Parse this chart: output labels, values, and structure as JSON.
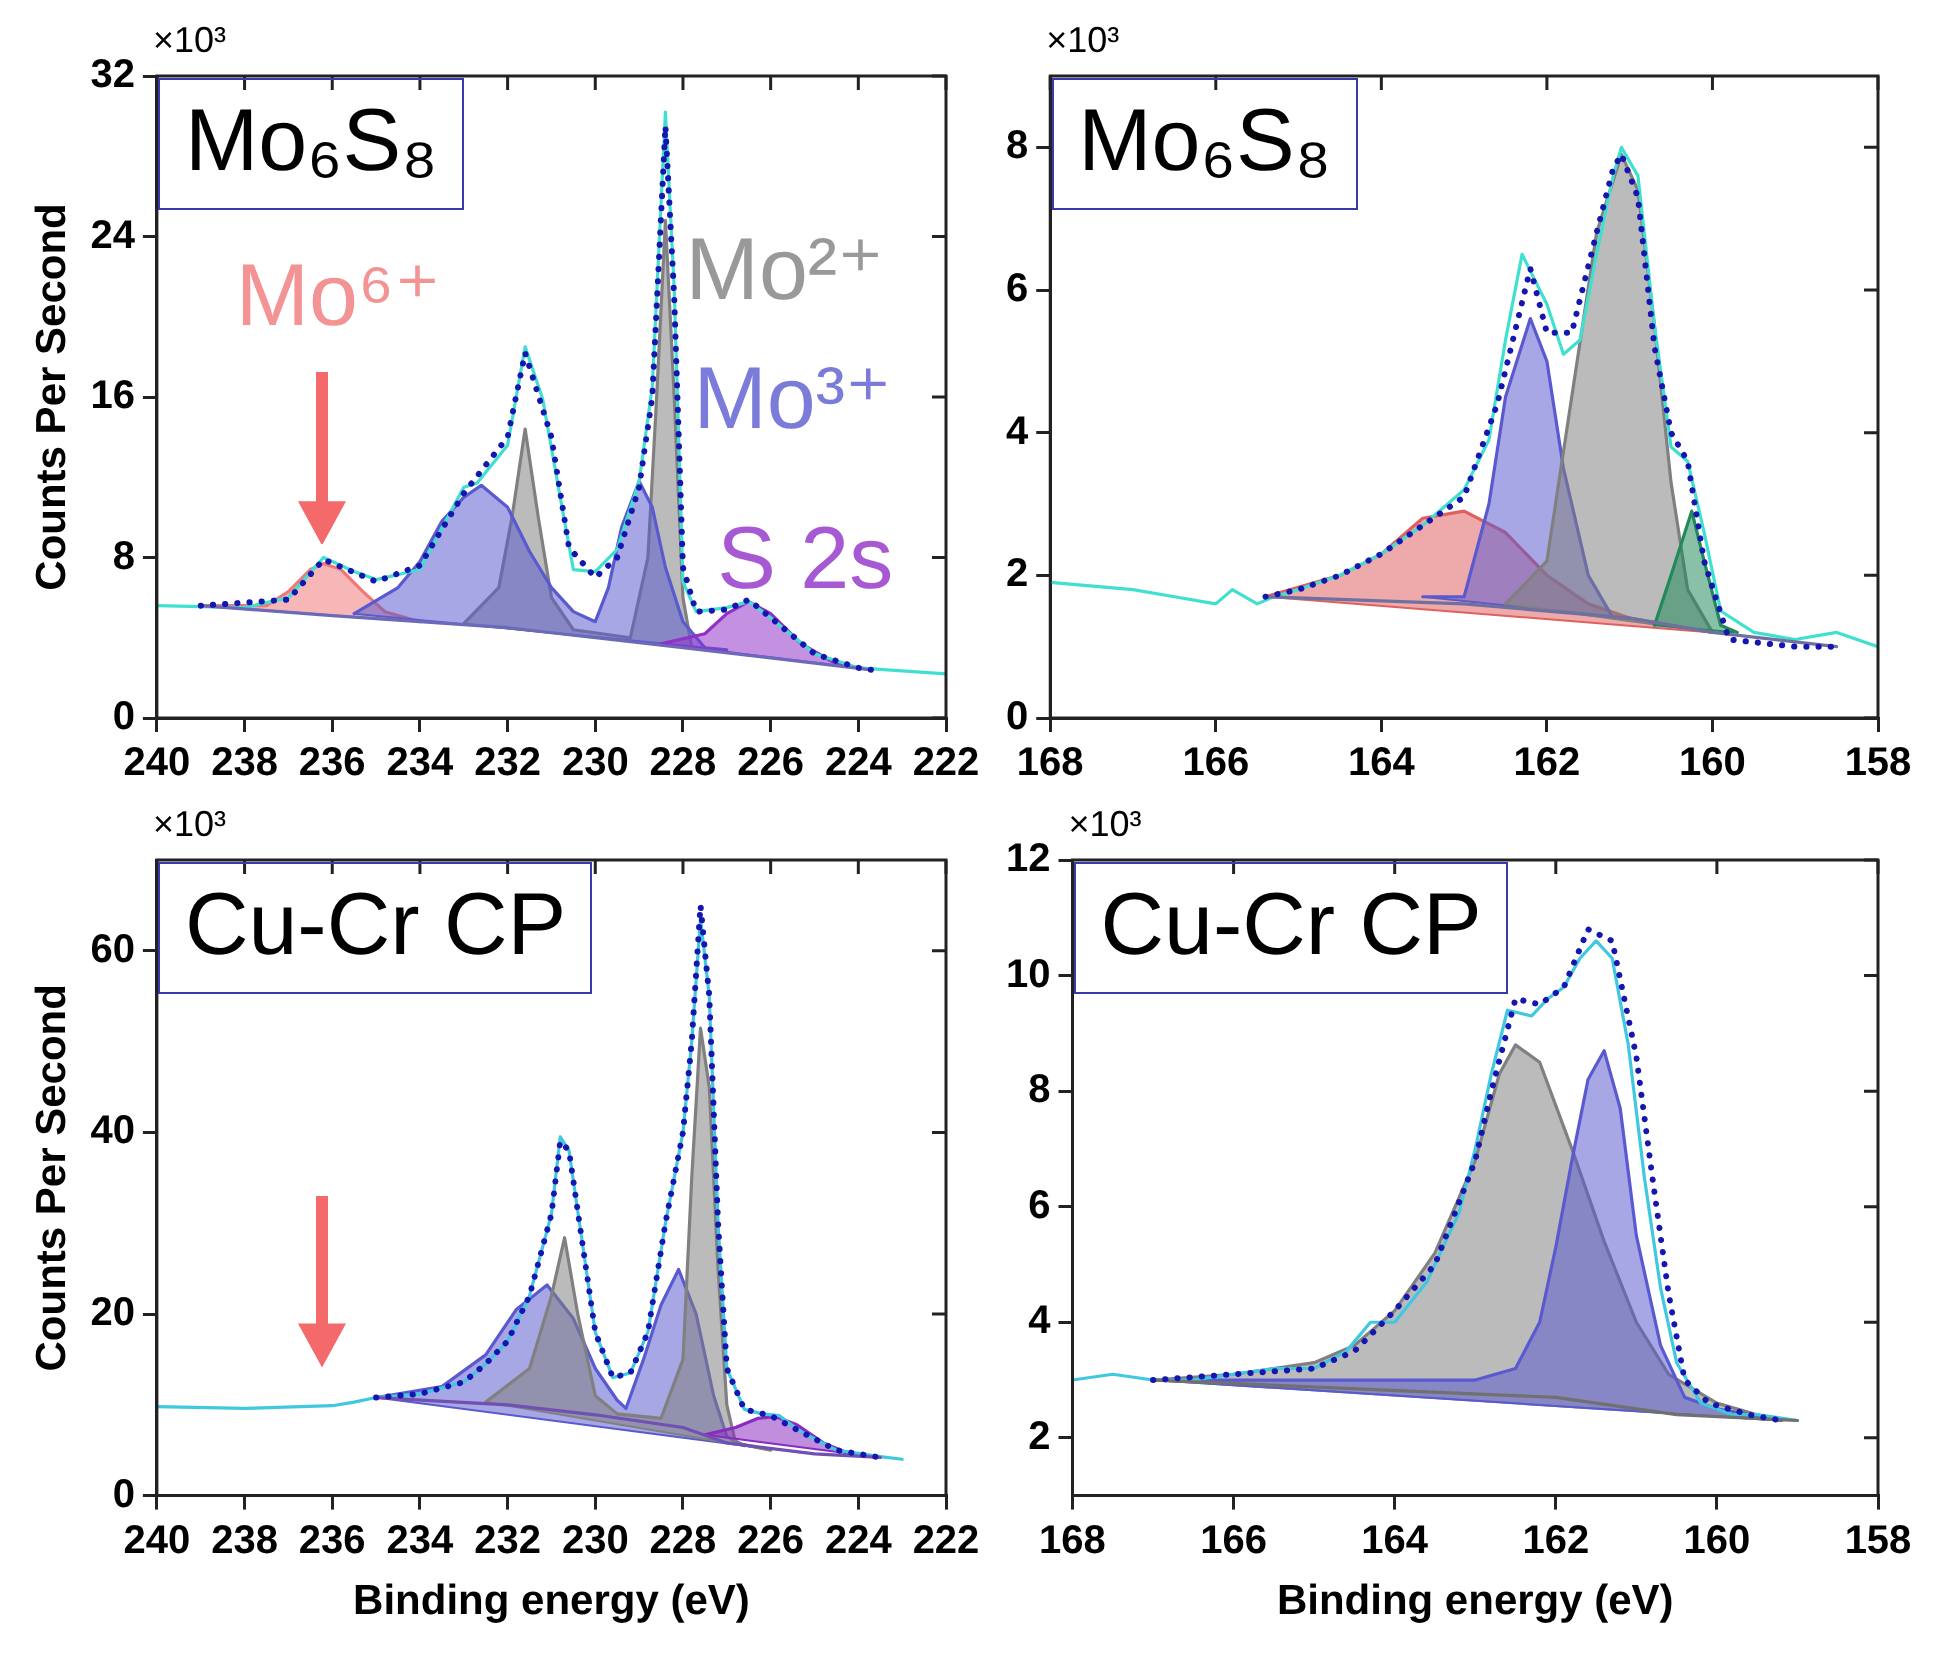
{
  "chart_data": [
    {
      "type": "line",
      "title": "Mo₆S₈",
      "ylabel": "Counts Per Second",
      "annotations": [
        "×10³"
      ],
      "xlim": [
        240,
        222
      ],
      "xticks": [
        240,
        238,
        236,
        234,
        232,
        230,
        228,
        226,
        224,
        222
      ],
      "ylim": [
        0,
        32
      ],
      "yticks": [
        0,
        8,
        16,
        24,
        32
      ],
      "series": [
        {
          "type": "line",
          "color": "#40e0d0",
          "x": [
            240,
            238,
            237,
            236.2,
            235.5,
            235,
            234,
            233,
            232.7,
            232,
            231.6,
            231.2,
            230.8,
            230.5,
            230,
            229.5,
            229,
            228.7,
            228.4,
            228.2,
            228,
            227.7,
            227,
            226.5,
            226,
            225,
            224,
            222
          ],
          "values": [
            5.6,
            5.5,
            6.0,
            8.0,
            7.3,
            6.9,
            7.4,
            11.5,
            11.7,
            13.6,
            18.5,
            15.9,
            11.0,
            7.4,
            7.3,
            8.4,
            11.8,
            16.5,
            30.2,
            21.4,
            6.8,
            5.3,
            5.5,
            5.8,
            5.0,
            3.2,
            2.5,
            2.2
          ]
        },
        {
          "type": "line",
          "color": "#6a6ab8",
          "x": [
            239,
            236,
            232,
            228,
            226,
            223.7
          ],
          "values": [
            5.6,
            5.1,
            4.5,
            3.5,
            3.0,
            2.4
          ]
        },
        {
          "type": "area",
          "name": "Mo⁶⁺",
          "color": "#f07878",
          "x": [
            239,
            237.5,
            237,
            236.5,
            236.2,
            235.8,
            235.3,
            234.8,
            234
          ],
          "values": [
            5.6,
            5.6,
            6.3,
            7.4,
            7.7,
            7.4,
            6.3,
            5.3,
            4.8
          ]
        },
        {
          "type": "area",
          "name": "Mo²⁺",
          "color": "#808080",
          "x": [
            233,
            232.2,
            231.9,
            231.6,
            231.3,
            231,
            230.5,
            229.2,
            228.8,
            228.6,
            228.4,
            228.2,
            228,
            227.8
          ],
          "values": [
            4.7,
            6.5,
            10,
            14.4,
            10,
            6.0,
            4.4,
            4.0,
            8,
            16,
            24.8,
            16,
            6,
            3.5
          ]
        },
        {
          "type": "area",
          "name": "Mo³⁺",
          "color": "#5a5ad0",
          "x": [
            235.5,
            234.5,
            234,
            233.5,
            233,
            232.6,
            232,
            231.5,
            231,
            230.5,
            230,
            229.7,
            229.4,
            229,
            228.7,
            228.4,
            228,
            227.5,
            227
          ],
          "values": [
            5.2,
            6.5,
            7.8,
            9.8,
            11.0,
            11.6,
            10.5,
            8.3,
            6.5,
            5.3,
            4.8,
            6.5,
            9.5,
            11.8,
            10.5,
            7.5,
            4.8,
            3.5,
            3.4
          ]
        },
        {
          "type": "area",
          "name": "S 2s",
          "color": "#9030c8",
          "x": [
            228.5,
            227.5,
            227,
            226.5,
            226,
            225.3,
            224.5,
            223.7
          ],
          "values": [
            3.7,
            4.2,
            5.2,
            5.8,
            5.2,
            3.7,
            2.7,
            2.4
          ]
        },
        {
          "type": "line",
          "line_style": "dotted",
          "color": "#1515b0",
          "x": [
            239,
            237,
            236.2,
            235,
            234,
            233,
            232,
            231.6,
            231,
            230.6,
            230,
            229.5,
            229,
            228.7,
            228.4,
            228.2,
            228,
            227.7,
            227,
            226.5,
            226,
            225,
            224,
            223.7
          ],
          "values": [
            5.6,
            5.9,
            7.9,
            6.8,
            7.6,
            11.2,
            14.0,
            18.2,
            14.0,
            8.5,
            7.0,
            8.0,
            11.5,
            16.0,
            29.5,
            21.0,
            7.5,
            5.3,
            5.4,
            5.9,
            5.0,
            3.2,
            2.5,
            2.4
          ]
        }
      ]
    },
    {
      "type": "line",
      "title": "Mo₆S₈",
      "annotations": [
        "×10³"
      ],
      "xlim": [
        168,
        158
      ],
      "xticks": [
        168,
        166,
        164,
        162,
        160,
        158
      ],
      "ylim": [
        0,
        9
      ],
      "yticks": [
        0,
        2,
        4,
        6,
        8
      ],
      "series": [
        {
          "type": "line",
          "color": "#40e0d0",
          "x": [
            168,
            167,
            166.5,
            166,
            165.8,
            165.5,
            165.3,
            165,
            164.5,
            164,
            163.5,
            163,
            162.7,
            162.5,
            162.3,
            162,
            161.8,
            161.6,
            161.4,
            161.2,
            161.1,
            160.9,
            160.7,
            160.5,
            160.3,
            160.1,
            159.9,
            159.5,
            159,
            158.5,
            158
          ],
          "values": [
            1.9,
            1.8,
            1.7,
            1.6,
            1.8,
            1.6,
            1.7,
            1.8,
            2.0,
            2.3,
            2.7,
            3.2,
            3.9,
            5.3,
            6.5,
            5.8,
            5.1,
            5.3,
            6.5,
            7.6,
            8.0,
            7.6,
            5.5,
            3.8,
            3.6,
            2.6,
            1.5,
            1.2,
            1.1,
            1.2,
            1.0
          ]
        },
        {
          "type": "line",
          "color": "#7070a0",
          "x": [
            165.4,
            163,
            161,
            160,
            158.5
          ],
          "values": [
            1.7,
            1.6,
            1.4,
            1.2,
            1.0
          ]
        },
        {
          "type": "area",
          "color": "#e06060",
          "x": [
            165.4,
            164.5,
            164,
            163.5,
            163,
            162.5,
            162,
            161.5,
            161,
            160
          ],
          "values": [
            1.7,
            2.0,
            2.3,
            2.8,
            2.9,
            2.6,
            2.0,
            1.6,
            1.4,
            1.2
          ]
        },
        {
          "type": "area",
          "color": "#5a5ad0",
          "x": [
            163.5,
            163,
            162.7,
            162.5,
            162.2,
            162,
            161.8,
            161.5,
            161.2,
            161
          ],
          "values": [
            1.7,
            1.7,
            3.0,
            4.5,
            5.6,
            5.0,
            3.5,
            2.0,
            1.4,
            1.4
          ]
        },
        {
          "type": "area",
          "color": "#808080",
          "x": [
            162.5,
            162,
            161.7,
            161.4,
            161.1,
            160.9,
            160.7,
            160.5,
            160.3,
            160
          ],
          "values": [
            1.6,
            2.2,
            4.5,
            6.8,
            7.9,
            7.4,
            5.5,
            3.3,
            1.8,
            1.2
          ]
        },
        {
          "type": "area",
          "color": "#208a5a",
          "x": [
            160.7,
            160.5,
            160.25,
            160.1,
            159.9,
            159.7
          ],
          "values": [
            1.3,
            2.0,
            2.9,
            2.2,
            1.3,
            1.2
          ]
        },
        {
          "type": "line",
          "line_style": "dotted",
          "color": "#1515b0",
          "x": [
            165.4,
            165,
            164.5,
            164,
            163.5,
            163,
            162.6,
            162.2,
            162,
            161.7,
            161.4,
            161.2,
            161.1,
            160.9,
            160.7,
            160.5,
            160.3,
            160.1,
            159.8,
            159,
            158.5
          ],
          "values": [
            1.7,
            1.8,
            2.0,
            2.3,
            2.7,
            3.1,
            4.4,
            6.3,
            5.4,
            5.4,
            6.8,
            7.7,
            7.9,
            7.3,
            5.2,
            4.0,
            3.6,
            2.2,
            1.1,
            1.0,
            1.0
          ]
        }
      ]
    },
    {
      "type": "line",
      "title": "Cu-Cr CP",
      "xlabel": "Binding energy (eV)",
      "ylabel": "Counts Per Second",
      "annotations": [
        "×10³"
      ],
      "xlim": [
        240,
        222
      ],
      "xticks": [
        240,
        238,
        236,
        234,
        232,
        230,
        228,
        226,
        224,
        222
      ],
      "ylim": [
        0,
        70
      ],
      "yticks": [
        0,
        20,
        40,
        60
      ],
      "series": [
        {
          "type": "line",
          "color": "#40c8e0",
          "x": [
            240,
            238,
            236,
            235.5,
            235,
            234,
            233,
            232.5,
            232,
            231.5,
            231,
            230.8,
            230.6,
            230.3,
            230,
            229.6,
            229.2,
            228.8,
            228.4,
            228,
            227.8,
            227.6,
            227.4,
            227.2,
            227,
            226.6,
            226.2,
            225.8,
            225.3,
            224.5,
            223.5,
            223
          ],
          "values": [
            9.8,
            9.6,
            9.9,
            10.3,
            10.8,
            11.2,
            12.5,
            14.5,
            17,
            22,
            31,
            39.5,
            38,
            28,
            18,
            13,
            13.5,
            18,
            30,
            40,
            50,
            63.5,
            55,
            30,
            14,
            9.5,
            9.0,
            8.8,
            7.0,
            5.0,
            4.3,
            4.0
          ]
        },
        {
          "type": "line",
          "color": "#7050b0",
          "x": [
            235,
            232,
            230,
            228,
            227,
            225,
            223.5
          ],
          "values": [
            10.8,
            10.0,
            8.9,
            7.5,
            5.8,
            4.6,
            4.2
          ]
        },
        {
          "type": "area",
          "color": "#5a5ad0",
          "x": [
            235,
            233.5,
            232.5,
            231.8,
            231.1,
            230.5,
            230,
            229.5,
            229.3,
            228.9,
            228.5,
            228.1,
            227.7,
            227.3,
            227,
            226.6
          ],
          "values": [
            10.8,
            12.0,
            15.5,
            20.5,
            23.2,
            19.5,
            14,
            10.5,
            9.6,
            15,
            21,
            24.9,
            20,
            11,
            6.5,
            5.5
          ]
        },
        {
          "type": "area",
          "color": "#808080",
          "x": [
            232.5,
            231.5,
            231,
            230.7,
            230.4,
            230,
            229.5,
            228.5,
            228,
            227.8,
            227.6,
            227.4,
            227.2,
            227,
            226.8,
            226
          ],
          "values": [
            10.3,
            14,
            22,
            28.4,
            20,
            11,
            9.0,
            8.5,
            15,
            35,
            51.5,
            45,
            25,
            10,
            5.8,
            5.0
          ]
        },
        {
          "type": "area",
          "color": "#8a2ac0",
          "x": [
            227.5,
            226.8,
            226.3,
            225.9,
            225.4,
            224.8,
            224.3,
            223.5
          ],
          "values": [
            6.7,
            7.5,
            8.5,
            8.7,
            7.8,
            5.8,
            4.8,
            4.2
          ]
        },
        {
          "type": "line",
          "line_style": "dotted",
          "color": "#1515b0",
          "x": [
            235,
            234,
            233,
            232.5,
            232,
            231.5,
            231,
            230.8,
            230.6,
            230.3,
            230,
            229.6,
            229.2,
            228.8,
            228.4,
            228,
            227.8,
            227.6,
            227.4,
            227.2,
            227,
            226.6,
            226,
            225.3,
            224.5,
            223.5
          ],
          "values": [
            10.8,
            11.2,
            12.5,
            14.5,
            17,
            22,
            31,
            39,
            38,
            28,
            18,
            13,
            13.5,
            18,
            30,
            40,
            50,
            65,
            55,
            30,
            14,
            9.5,
            8.8,
            7.0,
            5.0,
            4.2
          ]
        }
      ]
    },
    {
      "type": "line",
      "title": "Cu-Cr CP",
      "xlabel": "Binding energy (eV)",
      "annotations": [
        "×10³"
      ],
      "xlim": [
        168,
        158
      ],
      "xticks": [
        168,
        166,
        164,
        162,
        160,
        158
      ],
      "ylim": [
        1,
        12
      ],
      "yticks": [
        2,
        4,
        6,
        8,
        10,
        12
      ],
      "series": [
        {
          "type": "line",
          "color": "#40c8e0",
          "x": [
            168,
            167.5,
            167,
            166.5,
            166,
            165.5,
            165,
            164.6,
            164.3,
            164,
            163.6,
            163.2,
            163,
            162.8,
            162.6,
            162.3,
            162.1,
            161.9,
            161.7,
            161.5,
            161.3,
            161.1,
            160.9,
            160.7,
            160.5,
            160.2,
            159.8,
            159.5,
            159
          ],
          "values": [
            3.0,
            3.1,
            3.0,
            3.0,
            3.1,
            3.2,
            3.2,
            3.5,
            4.0,
            4.0,
            4.7,
            5.9,
            7.0,
            8.3,
            9.4,
            9.3,
            9.6,
            9.8,
            10.3,
            10.6,
            10.3,
            8.8,
            6.5,
            4.6,
            3.3,
            2.6,
            2.4,
            2.4,
            2.3
          ]
        },
        {
          "type": "line",
          "color": "#707070",
          "x": [
            167,
            162,
            160.5,
            159
          ],
          "values": [
            3.0,
            2.7,
            2.4,
            2.3
          ]
        },
        {
          "type": "area",
          "color": "#808080",
          "x": [
            167,
            166,
            165,
            164.5,
            164,
            163.5,
            163,
            162.7,
            162.5,
            162.2,
            161.8,
            161.4,
            161,
            160.6,
            160,
            159.5,
            159.2
          ],
          "values": [
            3.0,
            3.1,
            3.3,
            3.6,
            4.2,
            5.2,
            6.8,
            8.3,
            8.8,
            8.5,
            7.0,
            5.4,
            4.0,
            3.1,
            2.6,
            2.4,
            2.3
          ]
        },
        {
          "type": "area",
          "color": "#5a5ad0",
          "x": [
            167,
            163,
            162.5,
            162.2,
            162,
            161.8,
            161.6,
            161.4,
            161.2,
            161,
            160.7,
            160.4,
            160,
            159.2
          ],
          "values": [
            3.0,
            3.0,
            3.2,
            4.0,
            5.3,
            6.8,
            8.2,
            8.7,
            7.7,
            5.5,
            3.6,
            2.7,
            2.5,
            2.3
          ]
        },
        {
          "type": "line",
          "line_style": "dotted",
          "color": "#1515b0",
          "x": [
            167,
            166,
            165,
            164.5,
            164,
            163.5,
            163,
            162.8,
            162.5,
            162.2,
            161.9,
            161.6,
            161.3,
            161,
            160.8,
            160.6,
            160.4,
            160.1,
            159.6,
            159.2
          ],
          "values": [
            3.0,
            3.1,
            3.2,
            3.5,
            4.2,
            5.0,
            6.8,
            8.0,
            9.6,
            9.5,
            9.8,
            10.8,
            10.6,
            8.6,
            6.5,
            4.5,
            3.0,
            2.6,
            2.4,
            2.3
          ]
        }
      ]
    }
  ]
}
